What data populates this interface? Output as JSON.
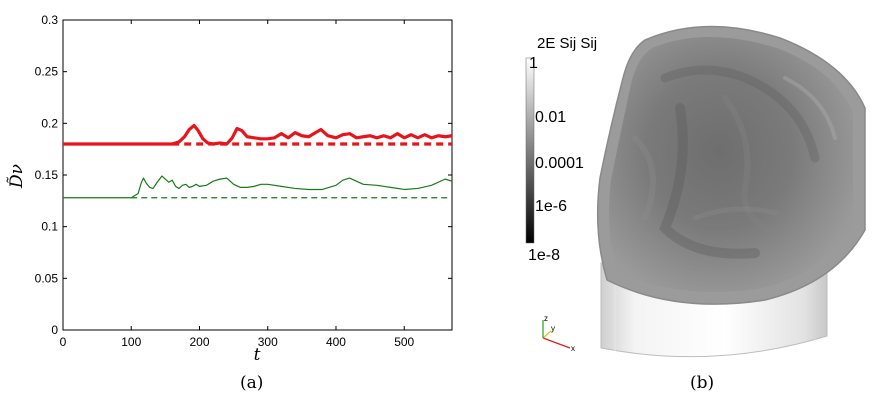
{
  "panel_a": {
    "caption": "(a)",
    "chart_data": {
      "type": "line",
      "xlabel": "t",
      "ylabel": "D̃ν",
      "xlim": [
        0,
        570
      ],
      "ylim": [
        0,
        0.3
      ],
      "xticks": [
        "0",
        "100",
        "200",
        "300",
        "400",
        "500"
      ],
      "yticks": [
        "0",
        "0.05",
        "0.1",
        "0.15",
        "0.2",
        "0.25",
        "0.3"
      ],
      "grid": false,
      "series": [
        {
          "color": "#e8141c",
          "style": "solid-thick",
          "x": [
            0,
            160,
            170,
            178,
            185,
            192,
            198,
            205,
            212,
            220,
            230,
            240,
            248,
            255,
            262,
            270,
            280,
            290,
            300,
            310,
            320,
            330,
            340,
            350,
            360,
            370,
            378,
            388,
            400,
            410,
            420,
            430,
            440,
            450,
            460,
            470,
            480,
            490,
            500,
            510,
            520,
            530,
            540,
            550,
            560,
            570
          ],
          "y": [
            0.18,
            0.18,
            0.182,
            0.187,
            0.194,
            0.198,
            0.193,
            0.185,
            0.181,
            0.18,
            0.181,
            0.18,
            0.186,
            0.195,
            0.193,
            0.187,
            0.186,
            0.185,
            0.185,
            0.186,
            0.19,
            0.186,
            0.191,
            0.188,
            0.187,
            0.191,
            0.194,
            0.188,
            0.186,
            0.189,
            0.19,
            0.186,
            0.187,
            0.188,
            0.186,
            0.188,
            0.186,
            0.19,
            0.186,
            0.189,
            0.186,
            0.189,
            0.186,
            0.188,
            0.187,
            0.188
          ]
        },
        {
          "color": "#e8141c",
          "style": "dashed-thick",
          "x": [
            160,
            570
          ],
          "y": [
            0.18,
            0.18
          ]
        },
        {
          "color": "#1a7a1a",
          "style": "solid-thin",
          "x": [
            0,
            100,
            105,
            110,
            115,
            118,
            122,
            127,
            132,
            138,
            145,
            150,
            155,
            160,
            165,
            170,
            175,
            180,
            185,
            190,
            195,
            200,
            210,
            220,
            230,
            240,
            250,
            260,
            270,
            280,
            290,
            300,
            320,
            340,
            360,
            380,
            400,
            410,
            420,
            430,
            440,
            460,
            480,
            500,
            520,
            540,
            560,
            570
          ],
          "y": [
            0.128,
            0.128,
            0.13,
            0.132,
            0.143,
            0.147,
            0.142,
            0.138,
            0.137,
            0.143,
            0.149,
            0.146,
            0.143,
            0.145,
            0.139,
            0.137,
            0.14,
            0.141,
            0.138,
            0.139,
            0.141,
            0.139,
            0.14,
            0.144,
            0.146,
            0.147,
            0.141,
            0.138,
            0.138,
            0.139,
            0.141,
            0.141,
            0.139,
            0.137,
            0.136,
            0.136,
            0.14,
            0.145,
            0.147,
            0.144,
            0.141,
            0.14,
            0.138,
            0.136,
            0.137,
            0.14,
            0.146,
            0.144
          ]
        },
        {
          "color": "#1a7a1a",
          "style": "dashed-thin",
          "x": [
            100,
            570
          ],
          "y": [
            0.128,
            0.128
          ]
        }
      ]
    }
  },
  "panel_b": {
    "caption": "(b)",
    "colorbar": {
      "title": "2E Sij Sij",
      "labels": [
        "1",
        "0.01",
        "0.0001",
        "1e-6",
        "1e-8"
      ]
    },
    "triad": {
      "labels": [
        "z",
        "y",
        "x"
      ],
      "colors": {
        "x": "#d42020",
        "y": "#d4c020",
        "z": "#20a020"
      }
    }
  }
}
